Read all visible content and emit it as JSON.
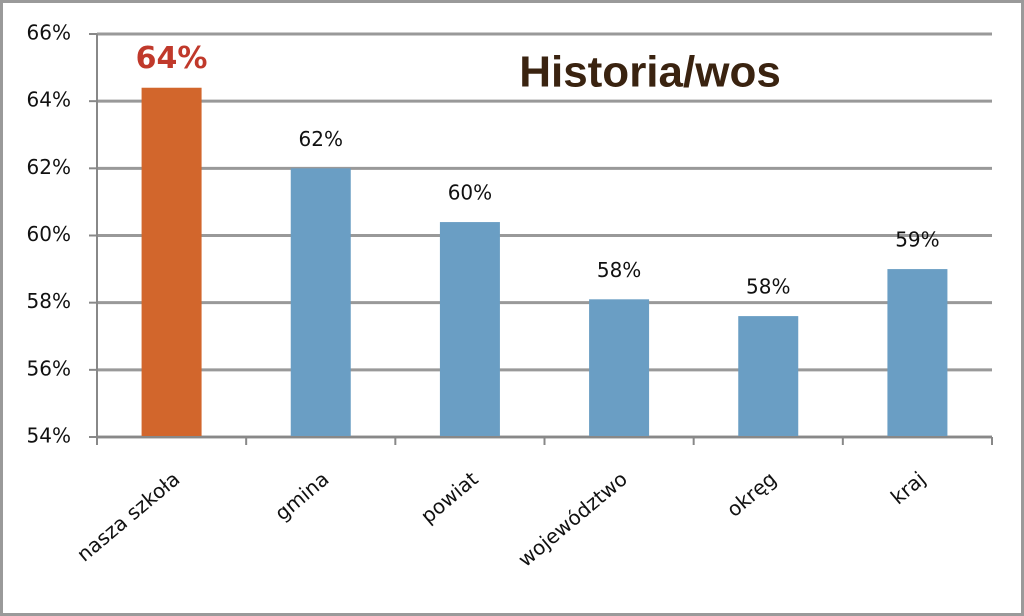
{
  "chart_data": {
    "type": "bar",
    "title": "Historia/wos",
    "categories": [
      "nasza szkoła",
      "gmina",
      "powiat",
      "województwo",
      "okręg",
      "kraj"
    ],
    "values": [
      64.4,
      62.0,
      60.4,
      58.1,
      57.6,
      59.0
    ],
    "value_labels": [
      "64%",
      "62%",
      "60%",
      "58%",
      "58%",
      "59%"
    ],
    "colors": [
      "#d2662c",
      "#6a9ec4",
      "#6a9ec4",
      "#6a9ec4",
      "#6a9ec4",
      "#6a9ec4"
    ],
    "value_label_colors": [
      "#c0392b",
      "#111111",
      "#111111",
      "#111111",
      "#111111",
      "#111111"
    ],
    "ylim": [
      54,
      66
    ],
    "yticks": [
      {
        "value": 54,
        "label": "54%"
      },
      {
        "value": 56,
        "label": "56%"
      },
      {
        "value": 58,
        "label": "58%"
      },
      {
        "value": 60,
        "label": "60%"
      },
      {
        "value": 62,
        "label": "62%"
      },
      {
        "value": 64,
        "label": "64%"
      },
      {
        "value": 66,
        "label": "66%"
      }
    ],
    "grid": true
  }
}
